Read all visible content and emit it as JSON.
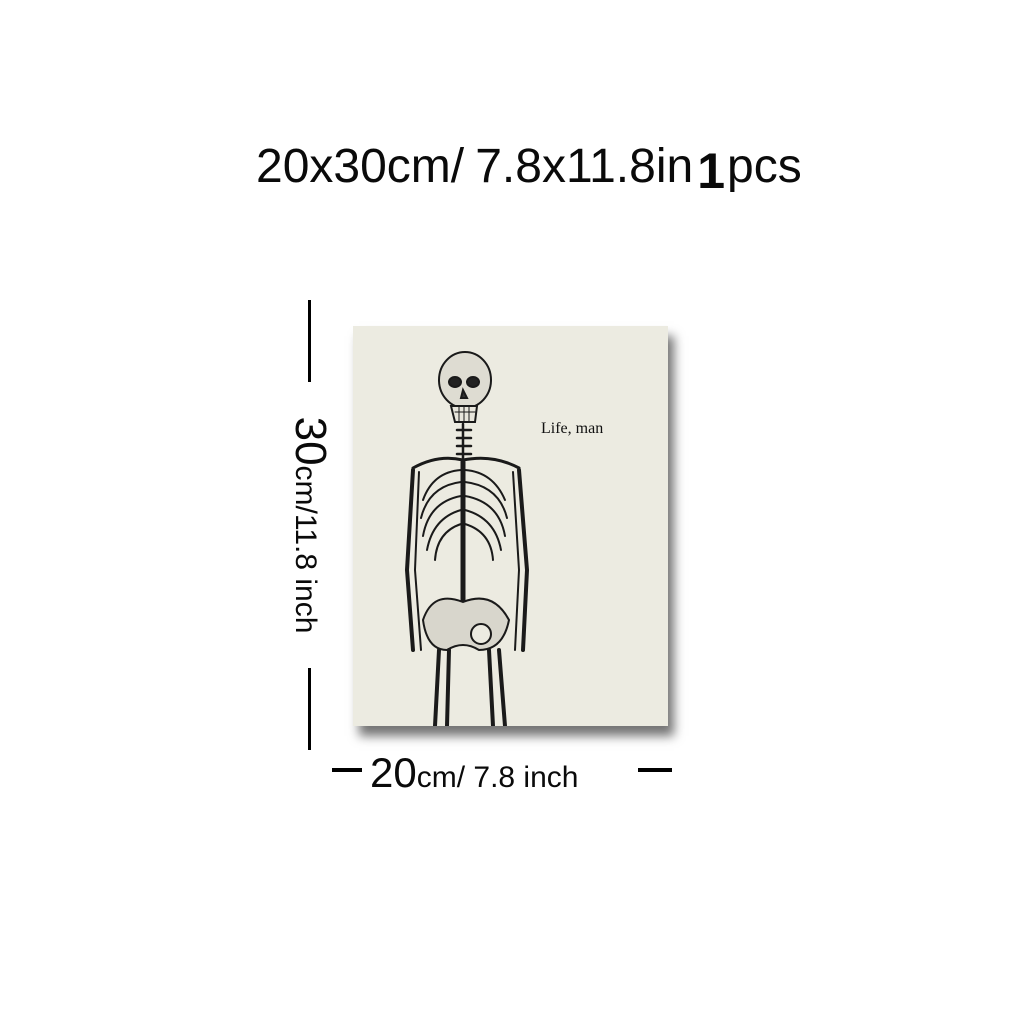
{
  "headline": {
    "size_cm": "20x30cm/",
    "size_in": "7.8x11.8in",
    "quantity_number": "1",
    "quantity_unit": "pcs"
  },
  "poster": {
    "caption": "Life, man",
    "image_icon": "skeleton-illustration-icon",
    "background_color": "#ecebe1"
  },
  "height_label": {
    "number": "30",
    "rest": "cm/11.8 inch"
  },
  "width_label": {
    "number": "20",
    "rest": "cm/ 7.8 inch"
  }
}
